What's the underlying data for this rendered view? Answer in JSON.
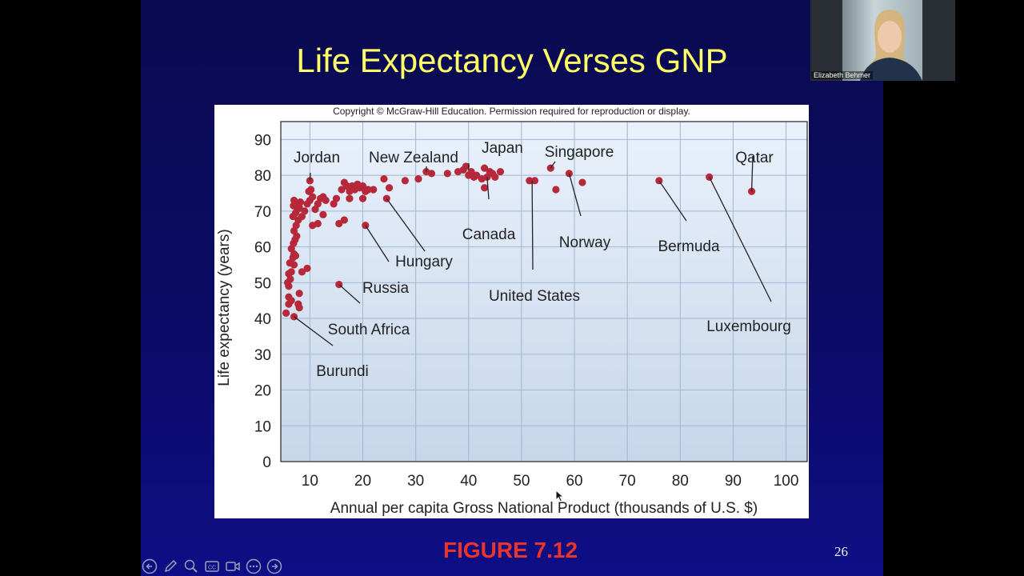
{
  "slide": {
    "title": "Life Expectancy Verses GNP",
    "figure_caption": "FIGURE 7.12",
    "slide_number": "26",
    "copyright": "Copyright © McGraw-Hill Education. Permission required for reproduction or display."
  },
  "video": {
    "participant_name": "Elizabeth Behmer"
  },
  "toolbar": {
    "icons": [
      "back-arrow-icon",
      "pen-icon",
      "zoom-icon",
      "captions-icon",
      "video-camera-icon",
      "more-options-icon",
      "forward-arrow-icon"
    ]
  },
  "colors": {
    "title": "#ffff66",
    "caption": "#e8342a",
    "points": "#b7283a"
  },
  "chart_data": {
    "type": "scatter",
    "title": "",
    "xlabel": "Annual per capita Gross National Product (thousands of U.S. $)",
    "ylabel": "Life expectancy (years)",
    "xlim": [
      4.5,
      104
    ],
    "ylim": [
      0,
      95
    ],
    "xticks": [
      10,
      20,
      30,
      40,
      50,
      60,
      70,
      80,
      90,
      100
    ],
    "yticks": [
      0,
      10,
      20,
      30,
      40,
      50,
      60,
      70,
      80,
      90
    ],
    "grid": true,
    "points": [
      [
        5.5,
        41.5
      ],
      [
        6,
        44
      ],
      [
        6,
        46
      ],
      [
        6.5,
        45
      ],
      [
        6,
        49
      ],
      [
        5.8,
        50
      ],
      [
        6.3,
        51
      ],
      [
        6,
        52.5
      ],
      [
        6.5,
        53
      ],
      [
        7,
        55
      ],
      [
        6.2,
        55.5
      ],
      [
        6.8,
        57
      ],
      [
        7,
        58
      ],
      [
        7.3,
        57.5
      ],
      [
        6.5,
        59.5
      ],
      [
        6.9,
        61
      ],
      [
        7.2,
        62
      ],
      [
        7.5,
        63
      ],
      [
        7,
        64.5
      ],
      [
        7.4,
        66
      ],
      [
        7.8,
        67.5
      ],
      [
        6.8,
        68.5
      ],
      [
        7.3,
        69.5
      ],
      [
        7.7,
        70.5
      ],
      [
        8,
        71
      ],
      [
        6.9,
        71.5
      ],
      [
        7.4,
        72
      ],
      [
        8.2,
        72.5
      ],
      [
        7,
        73
      ],
      [
        8.5,
        68.5
      ],
      [
        9,
        70
      ],
      [
        9.5,
        72
      ],
      [
        10,
        73
      ],
      [
        10.5,
        74
      ],
      [
        9.8,
        75.5
      ],
      [
        10.2,
        76
      ],
      [
        10,
        78.5
      ],
      [
        11,
        70.5
      ],
      [
        11.5,
        72
      ],
      [
        12,
        73.5
      ],
      [
        12.5,
        74
      ],
      [
        13,
        73
      ],
      [
        12.5,
        69
      ],
      [
        10.5,
        66
      ],
      [
        11.5,
        66.5
      ],
      [
        14.5,
        72
      ],
      [
        15,
        73.5
      ],
      [
        16,
        76
      ],
      [
        16.5,
        78
      ],
      [
        17,
        77
      ],
      [
        17.5,
        75.5
      ],
      [
        18,
        77
      ],
      [
        18.5,
        76
      ],
      [
        19,
        77.5
      ],
      [
        19.5,
        76.5
      ],
      [
        20,
        77
      ],
      [
        20.5,
        75.5
      ],
      [
        21,
        76
      ],
      [
        22,
        76
      ],
      [
        17.5,
        73.5
      ],
      [
        20,
        73.5
      ],
      [
        15.5,
        66.5
      ],
      [
        16.5,
        67.5
      ],
      [
        7.8,
        44
      ],
      [
        8,
        47
      ],
      [
        8.5,
        53
      ],
      [
        9.5,
        54
      ],
      [
        7,
        40.5
      ],
      [
        8,
        43
      ],
      [
        20.5,
        66
      ],
      [
        15.5,
        49.5
      ],
      [
        24,
        79
      ],
      [
        25,
        76.5
      ],
      [
        24.5,
        73.5
      ],
      [
        28,
        78.5
      ],
      [
        30.5,
        79
      ],
      [
        32,
        81
      ],
      [
        33,
        80.5
      ],
      [
        36,
        80.5
      ],
      [
        38,
        81
      ],
      [
        39,
        81.5
      ],
      [
        39.5,
        82.5
      ],
      [
        40,
        80
      ],
      [
        40.5,
        81
      ],
      [
        41,
        79.5
      ],
      [
        41.5,
        80
      ],
      [
        42.5,
        79
      ],
      [
        43,
        82
      ],
      [
        43.5,
        79.5
      ],
      [
        44,
        81
      ],
      [
        44.5,
        80.5
      ],
      [
        45,
        79.5
      ],
      [
        46,
        81
      ],
      [
        43,
        76.5
      ],
      [
        51.5,
        78.5
      ],
      [
        52.5,
        78.5
      ],
      [
        55.5,
        82
      ],
      [
        56.5,
        76
      ],
      [
        59,
        80.5
      ],
      [
        61.5,
        78
      ],
      [
        76,
        78.5
      ],
      [
        85.5,
        79.5
      ],
      [
        93.5,
        75.5
      ]
    ],
    "annotations": [
      {
        "label": "Jordan",
        "target": [
          10,
          78.5
        ]
      },
      {
        "label": "New Zealand",
        "target": [
          32,
          81
        ]
      },
      {
        "label": "Japan",
        "target": [
          40,
          81.5
        ]
      },
      {
        "label": "Singapore",
        "target": [
          55.5,
          82
        ]
      },
      {
        "label": "Qatar",
        "target": [
          93.5,
          75.5
        ]
      },
      {
        "label": "Canada",
        "target": [
          43.5,
          79.5
        ]
      },
      {
        "label": "Norway",
        "target": [
          59,
          80.5
        ]
      },
      {
        "label": "Bermuda",
        "target": [
          76,
          78.5
        ]
      },
      {
        "label": "Hungary",
        "target": [
          24.5,
          73.5
        ]
      },
      {
        "label": "Russia",
        "target": [
          20.5,
          66
        ]
      },
      {
        "label": "United States",
        "target": [
          52,
          78.5
        ]
      },
      {
        "label": "South Africa",
        "target": [
          15.5,
          49.5
        ]
      },
      {
        "label": "Luxembourg",
        "target": [
          85.5,
          79.5
        ]
      },
      {
        "label": "Burundi",
        "target": [
          7,
          40.5
        ]
      }
    ]
  }
}
